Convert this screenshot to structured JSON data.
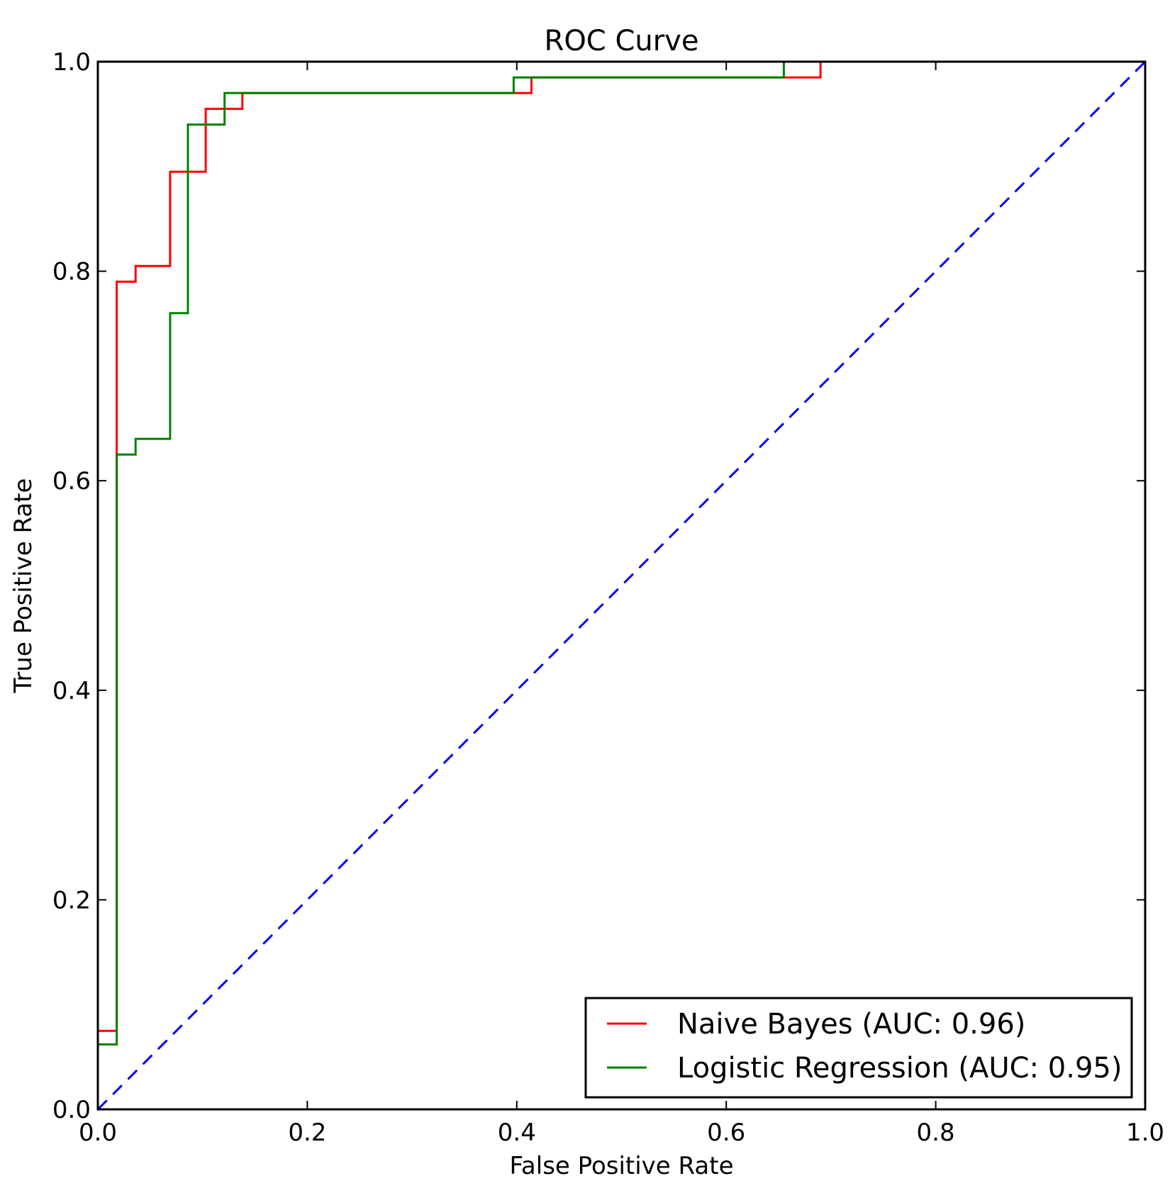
{
  "chart_data": {
    "type": "line",
    "title": "ROC Curve",
    "xlabel": "False Positive Rate",
    "ylabel": "True Positive Rate",
    "xlim": [
      0.0,
      1.0
    ],
    "ylim": [
      0.0,
      1.0
    ],
    "x_ticks": [
      "0.0",
      "0.2",
      "0.4",
      "0.6",
      "0.8",
      "1.0"
    ],
    "y_ticks": [
      "0.0",
      "0.2",
      "0.4",
      "0.6",
      "0.8",
      "1.0"
    ],
    "grid": false,
    "legend_position": "lower-right",
    "series": [
      {
        "name": "Naive Bayes (AUC: 0.96)",
        "color": "#ff0000",
        "style": "step",
        "x": [
          0.0,
          0.0,
          0.018,
          0.018,
          0.036,
          0.036,
          0.069,
          0.069,
          0.103,
          0.103,
          0.138,
          0.138,
          0.414,
          0.414,
          0.69,
          0.69,
          1.0
        ],
        "y": [
          0.0,
          0.075,
          0.075,
          0.79,
          0.79,
          0.805,
          0.805,
          0.895,
          0.895,
          0.955,
          0.955,
          0.97,
          0.97,
          0.985,
          0.985,
          1.0,
          1.0
        ]
      },
      {
        "name": "Logistic Regression (AUC: 0.95)",
        "color": "#008000",
        "style": "step",
        "x": [
          0.0,
          0.0,
          0.018,
          0.018,
          0.036,
          0.036,
          0.069,
          0.069,
          0.086,
          0.086,
          0.121,
          0.121,
          0.397,
          0.397,
          0.655,
          0.655,
          1.0
        ],
        "y": [
          0.0,
          0.062,
          0.062,
          0.625,
          0.625,
          0.64,
          0.64,
          0.76,
          0.76,
          0.94,
          0.94,
          0.97,
          0.97,
          0.985,
          0.985,
          1.0,
          1.0
        ]
      },
      {
        "color": "#0000ff",
        "style": "dashed",
        "x": [
          0.0,
          1.0
        ],
        "y": [
          0.0,
          1.0
        ]
      }
    ]
  }
}
